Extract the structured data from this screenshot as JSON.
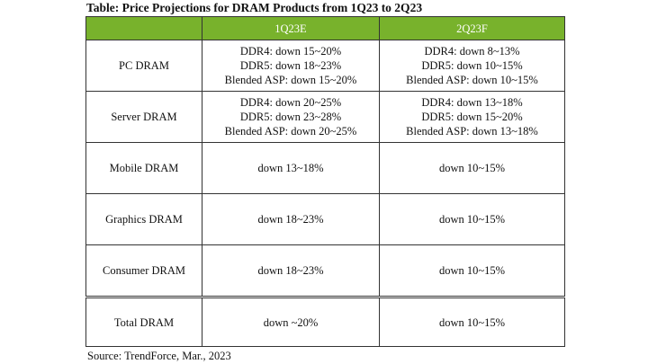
{
  "title": "Table: Price Projections for DRAM Products from 1Q23 to 2Q23",
  "header": [
    "",
    "1Q23E",
    "2Q23F"
  ],
  "header_color": "#78b22c",
  "rows": [
    {
      "label": "PC DRAM",
      "q1": [
        "DDR4: down 15~20%",
        "DDR5: down 18~23%",
        "Blended ASP: down 15~20%"
      ],
      "q2": [
        "DDR4: down 8~13%",
        "DDR5: down 10~15%",
        "Blended ASP: down 10~15%"
      ]
    },
    {
      "label": "Server DRAM",
      "q1": [
        "DDR4: down 20~25%",
        "DDR5: down 23~28%",
        "Blended ASP: down 20~25%"
      ],
      "q2": [
        "DDR4: down 13~18%",
        "DDR5: down 15~20%",
        "Blended ASP: down 13~18%"
      ]
    },
    {
      "label": "Mobile DRAM",
      "q1": [
        "down 13~18%"
      ],
      "q2": [
        "down 10~15%"
      ]
    },
    {
      "label": "Graphics DRAM",
      "q1": [
        "down 18~23%"
      ],
      "q2": [
        "down 10~15%"
      ]
    },
    {
      "label": "Consumer DRAM",
      "q1": [
        "down 18~23%"
      ],
      "q2": [
        "down 10~15%"
      ]
    },
    {
      "label": "Total DRAM",
      "q1": [
        "down ~20%"
      ],
      "q2": [
        "down 10~15%"
      ]
    }
  ],
  "source": "Source: TrendForce, Mar., 2023"
}
